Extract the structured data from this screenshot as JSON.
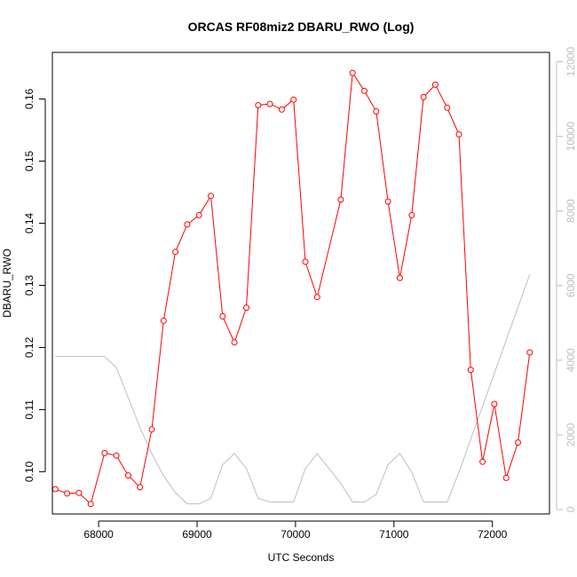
{
  "chart_data": {
    "type": "line",
    "title": "ORCAS RF08miz2 DBARU_RWO (Log)",
    "xlabel": "UTC Seconds",
    "ylabel": "DBARU_RWO",
    "xlim": [
      67530,
      72580
    ],
    "ylim": [
      0.0932,
      0.1675
    ],
    "y2lim": [
      -120,
      12250
    ],
    "grid": false,
    "colors": {
      "primary": "#ff0000",
      "secondary": "#bebebe",
      "axis": "#000000",
      "axis2": "#bebebe"
    },
    "x_ticks": [
      68000,
      69000,
      70000,
      71000,
      72000
    ],
    "y_ticks": [
      0.1,
      0.11,
      0.12,
      0.13,
      0.14,
      0.15,
      0.16
    ],
    "y2_ticks": [
      0,
      2000,
      4000,
      6000,
      8000,
      10000,
      12000
    ],
    "x_tick_labels": [
      "68000",
      "69000",
      "70000",
      "71000",
      "72000"
    ],
    "y_tick_labels": [
      "0.10",
      "0.11",
      "0.12",
      "0.13",
      "0.14",
      "0.15",
      "0.16"
    ],
    "y2_tick_labels": [
      "0",
      "2000",
      "4000",
      "6000",
      "8000",
      "10000",
      "12000"
    ],
    "series": [
      {
        "axis": "left",
        "marker": "circle",
        "x": [
          67560,
          67680,
          67800,
          67920,
          68060,
          68180,
          68300,
          68420,
          68540,
          68660,
          68780,
          68900,
          69020,
          69140,
          69260,
          69380,
          69500,
          69620,
          69740,
          69860,
          69980,
          70100,
          70220,
          70460,
          70580,
          70700,
          70820,
          70940,
          71060,
          71180,
          71300,
          71420,
          71540,
          71660,
          71780,
          71900,
          72020,
          72140,
          72260,
          72380
        ],
        "values": [
          0.0972,
          0.0965,
          0.0966,
          0.0948,
          0.103,
          0.1026,
          0.0994,
          0.0975,
          0.1068,
          0.1243,
          0.1354,
          0.1398,
          0.1413,
          0.1444,
          0.125,
          0.1208,
          0.1264,
          0.159,
          0.1592,
          0.1583,
          0.1599,
          0.1338,
          0.1281,
          0.1438,
          0.1642,
          0.1613,
          0.158,
          0.1435,
          0.1312,
          0.1413,
          0.1603,
          0.1623,
          0.1586,
          0.1543,
          0.1164,
          0.1016,
          0.1109,
          0.099,
          0.1047,
          0.1192
        ]
      },
      {
        "axis": "right",
        "x": [
          67560,
          68060,
          68180,
          68300,
          68420,
          68540,
          68660,
          68780,
          68900,
          69020,
          69140,
          69260,
          69380,
          69500,
          69620,
          69740,
          69860,
          69980,
          70100,
          70220,
          70340,
          70460,
          70580,
          70700,
          70820,
          70940,
          71060,
          71180,
          71300,
          71420,
          71540,
          71660,
          72380
        ],
        "values": [
          4100,
          4100,
          3800,
          3000,
          2200,
          1500,
          900,
          450,
          150,
          150,
          300,
          1200,
          1500,
          1100,
          300,
          200,
          200,
          200,
          1100,
          1500,
          1100,
          700,
          200,
          200,
          400,
          1200,
          1500,
          1000,
          200,
          200,
          200,
          1000,
          6300
        ]
      }
    ]
  }
}
